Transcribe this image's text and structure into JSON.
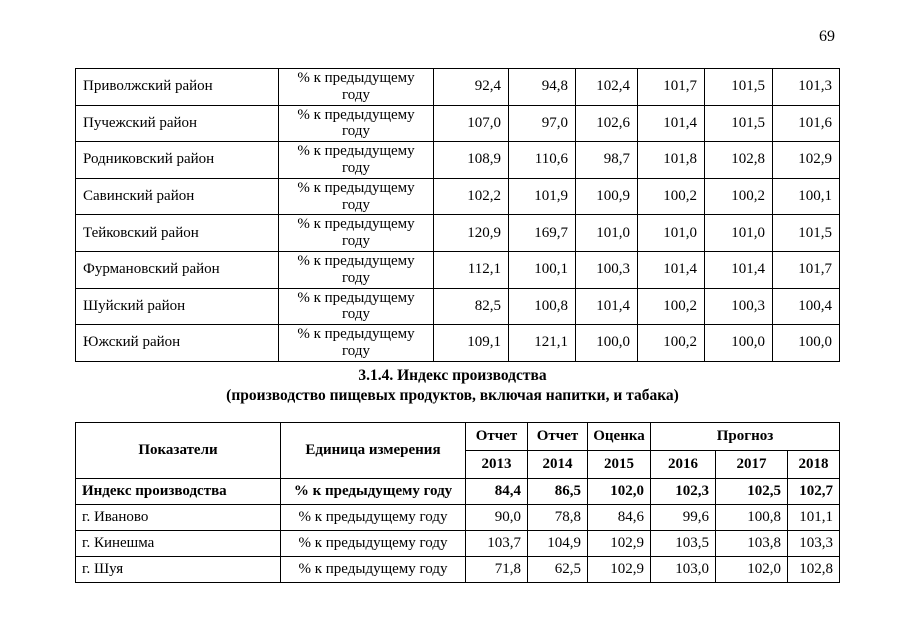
{
  "page": {
    "number": "69"
  },
  "table1": {
    "unit": "% к предыдущему году",
    "rows": [
      {
        "name": "Приволжский район",
        "values": [
          "92,4",
          "94,8",
          "102,4",
          "101,7",
          "101,5",
          "101,3"
        ]
      },
      {
        "name": "Пучежский район",
        "values": [
          "107,0",
          "97,0",
          "102,6",
          "101,4",
          "101,5",
          "101,6"
        ]
      },
      {
        "name": "Родниковский район",
        "values": [
          "108,9",
          "110,6",
          "98,7",
          "101,8",
          "102,8",
          "102,9"
        ]
      },
      {
        "name": "Савинский район",
        "values": [
          "102,2",
          "101,9",
          "100,9",
          "100,2",
          "100,2",
          "100,1"
        ]
      },
      {
        "name": "Тейковский район",
        "values": [
          "120,9",
          "169,7",
          "101,0",
          "101,0",
          "101,0",
          "101,5"
        ]
      },
      {
        "name": "Фурмановский район",
        "values": [
          "112,1",
          "100,1",
          "100,3",
          "101,4",
          "101,4",
          "101,7"
        ]
      },
      {
        "name": "Шуйский район",
        "values": [
          "82,5",
          "100,8",
          "101,4",
          "100,2",
          "100,3",
          "100,4"
        ]
      },
      {
        "name": "Южский район",
        "values": [
          "109,1",
          "121,1",
          "100,0",
          "100,2",
          "100,0",
          "100,0"
        ]
      }
    ]
  },
  "heading": {
    "line1": "3.1.4. Индекс производства",
    "line2": "(производство пищевых продуктов, включая напитки, и табака)"
  },
  "table2": {
    "headers": {
      "col1": "Показатели",
      "col2": "Единица измерения",
      "report1": "Отчет",
      "report2": "Отчет",
      "estimate": "Оценка",
      "forecast": "Прогноз",
      "years": [
        "2013",
        "2014",
        "2015",
        "2016",
        "2017",
        "2018"
      ]
    },
    "rows": [
      {
        "name": "Индекс производства",
        "unit": "% к предыдущему году",
        "bold": true,
        "values": [
          "84,4",
          "86,5",
          "102,0",
          "102,3",
          "102,5",
          "102,7"
        ]
      },
      {
        "name": "г. Иваново",
        "unit": "% к предыдущему году",
        "bold": false,
        "values": [
          "90,0",
          "78,8",
          "84,6",
          "99,6",
          "100,8",
          "101,1"
        ]
      },
      {
        "name": "г. Кинешма",
        "unit": "% к предыдущему году",
        "bold": false,
        "values": [
          "103,7",
          "104,9",
          "102,9",
          "103,5",
          "103,8",
          "103,3"
        ]
      },
      {
        "name": "г. Шуя",
        "unit": "% к предыдущему году",
        "bold": false,
        "values": [
          "71,8",
          "62,5",
          "102,9",
          "103,0",
          "102,0",
          "102,8"
        ]
      }
    ]
  }
}
